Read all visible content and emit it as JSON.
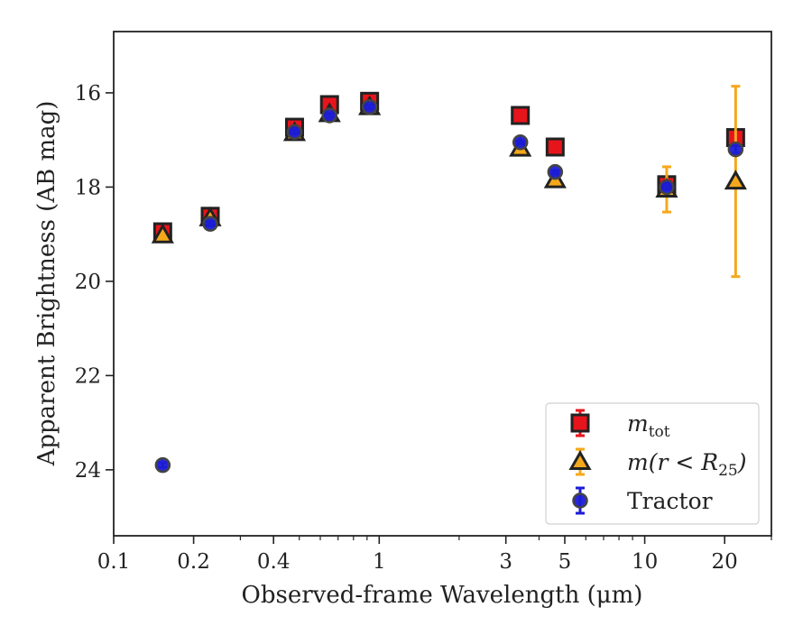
{
  "chart_data": {
    "type": "scatter",
    "xlabel": "Observed-frame Wavelength (μm)",
    "ylabel": "Apparent Brightness (AB mag)",
    "x_scale": "log",
    "xlim": [
      0.1,
      30
    ],
    "ylim": [
      25.4,
      14.7
    ],
    "y_inverted": true,
    "grid": false,
    "legend_position": "lower-right",
    "x_ticks": [
      {
        "value": 0.1,
        "label": "0.1"
      },
      {
        "value": 0.2,
        "label": "0.2"
      },
      {
        "value": 0.4,
        "label": "0.4"
      },
      {
        "value": 1,
        "label": "1"
      },
      {
        "value": 3,
        "label": "3"
      },
      {
        "value": 5,
        "label": "5"
      },
      {
        "value": 10,
        "label": "10"
      },
      {
        "value": 20,
        "label": "20"
      }
    ],
    "x_minor_ticks": [
      0.3,
      0.5,
      0.6,
      0.7,
      0.8,
      0.9,
      2,
      4,
      6,
      7,
      8,
      9,
      30
    ],
    "y_ticks": [
      {
        "value": 16,
        "label": "16"
      },
      {
        "value": 18,
        "label": "18"
      },
      {
        "value": 20,
        "label": "20"
      },
      {
        "value": 22,
        "label": "22"
      },
      {
        "value": 24,
        "label": "24"
      }
    ],
    "series": [
      {
        "key": "m_tot",
        "name": "m_tot",
        "name_base": "m",
        "name_sub": "tot",
        "marker": "square",
        "color": "#e8141b",
        "edge_color": "#222222",
        "error_color": "#e8141b",
        "points": [
          {
            "x": 0.153,
            "y": 18.95,
            "yerr": 0.05
          },
          {
            "x": 0.231,
            "y": 18.62,
            "yerr": 0.05
          },
          {
            "x": 0.48,
            "y": 16.73,
            "yerr": 0.04
          },
          {
            "x": 0.65,
            "y": 16.25,
            "yerr": 0.04
          },
          {
            "x": 0.92,
            "y": 16.18,
            "yerr": 0.04
          },
          {
            "x": 3.4,
            "y": 16.48,
            "yerr": 0.03
          },
          {
            "x": 4.6,
            "y": 17.15,
            "yerr": 0.03
          },
          {
            "x": 12.1,
            "y": 17.95,
            "yerr": 0.05
          },
          {
            "x": 22.0,
            "y": 16.95,
            "yerr": 0.05
          }
        ]
      },
      {
        "key": "m_r25",
        "name": "m(r < R_25)",
        "name_base": "m(r < R",
        "name_sub": "25",
        "name_tail": ")",
        "marker": "triangle",
        "color": "#f5a81c",
        "edge_color": "#222222",
        "error_color": "#f5a81c",
        "points": [
          {
            "x": 0.153,
            "y": 19.02,
            "yerr": 0.05
          },
          {
            "x": 0.231,
            "y": 18.66,
            "yerr": 0.05
          },
          {
            "x": 0.48,
            "y": 16.85,
            "yerr": 0.04
          },
          {
            "x": 0.65,
            "y": 16.45,
            "yerr": 0.04
          },
          {
            "x": 0.92,
            "y": 16.3,
            "yerr": 0.04
          },
          {
            "x": 3.4,
            "y": 17.18,
            "yerr": 0.03
          },
          {
            "x": 4.6,
            "y": 17.85,
            "yerr": 0.03
          },
          {
            "x": 12.1,
            "y": 18.05,
            "yerr": 0.48
          },
          {
            "x": 22.0,
            "y": 17.88,
            "yerr": 2.02
          }
        ]
      },
      {
        "key": "tractor",
        "name": "Tractor",
        "marker": "circle",
        "color": "#1c1cd6",
        "edge_color": "#444444",
        "error_color": "#1c1cd6",
        "points": [
          {
            "x": 0.153,
            "y": 23.9,
            "yerr": 0.05
          },
          {
            "x": 0.231,
            "y": 18.78,
            "yerr": 0.05
          },
          {
            "x": 0.48,
            "y": 16.83,
            "yerr": 0.04
          },
          {
            "x": 0.65,
            "y": 16.48,
            "yerr": 0.04
          },
          {
            "x": 0.92,
            "y": 16.3,
            "yerr": 0.04
          },
          {
            "x": 3.4,
            "y": 17.05,
            "yerr": 0.03
          },
          {
            "x": 4.6,
            "y": 17.68,
            "yerr": 0.03
          },
          {
            "x": 12.1,
            "y": 18.0,
            "yerr": 0.05
          },
          {
            "x": 22.0,
            "y": 17.2,
            "yerr": 0.08
          }
        ]
      }
    ]
  }
}
